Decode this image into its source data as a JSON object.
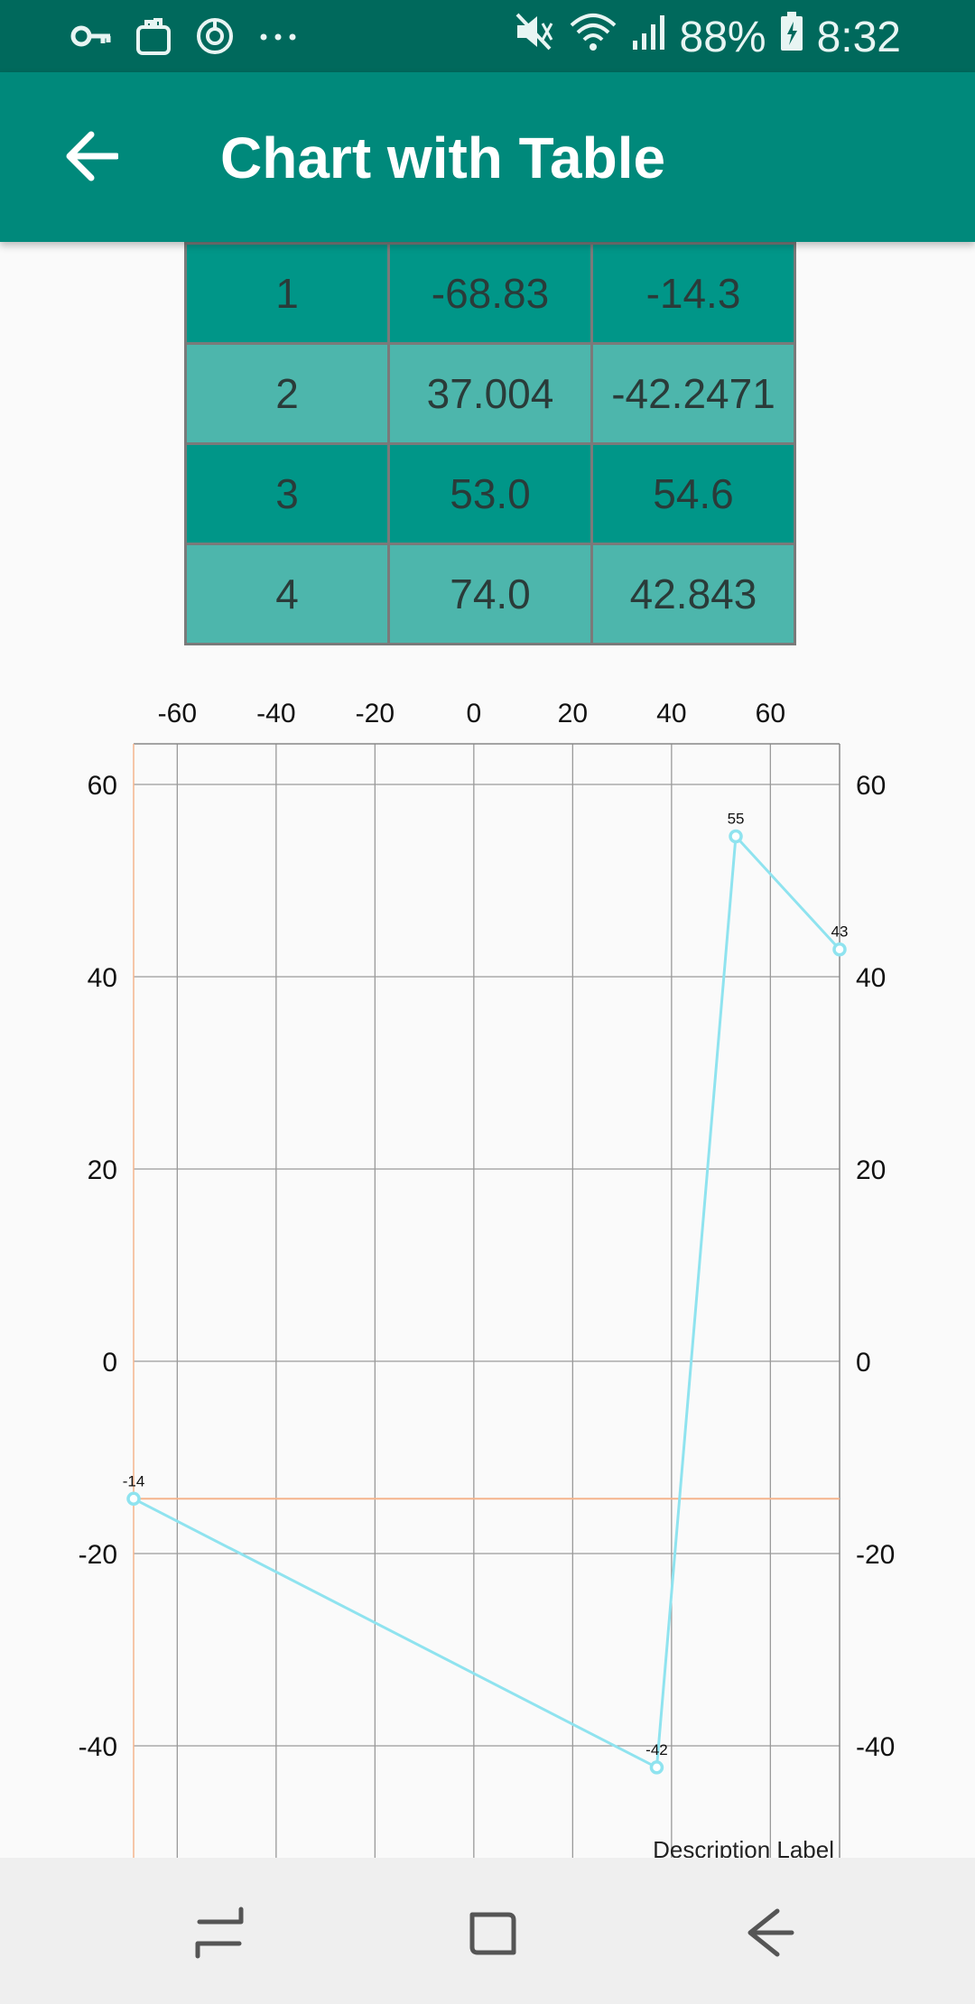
{
  "status_bar": {
    "battery": "88%",
    "time": "8:32",
    "icons_left": [
      "key-icon",
      "bag-icon",
      "sync-icon",
      "more-dots-icon"
    ],
    "icons_right": [
      "mute-icon",
      "wifi-icon",
      "signal-icon",
      "battery-icon"
    ]
  },
  "app_bar": {
    "title": "Chart with Table",
    "back_icon": "arrow-back-icon",
    "color": "#00897b"
  },
  "table": {
    "rows": [
      {
        "idx": "1",
        "x": "-68.83",
        "y": "-14.3"
      },
      {
        "idx": "2",
        "x": "37.004",
        "y": "-42.2471"
      },
      {
        "idx": "3",
        "x": "53.0",
        "y": "54.6"
      },
      {
        "idx": "4",
        "x": "74.0",
        "y": "42.843"
      }
    ],
    "colors": {
      "dark": "#009688",
      "light": "#4db6ac"
    }
  },
  "chart_data": {
    "type": "line",
    "points": [
      {
        "x": -68.83,
        "y": -14.3,
        "label": "-14"
      },
      {
        "x": 37.004,
        "y": -42.2471,
        "label": "-42"
      },
      {
        "x": 53.0,
        "y": 54.6,
        "label": "55"
      },
      {
        "x": 74.0,
        "y": 42.843,
        "label": "43"
      }
    ],
    "x_ticks": [
      "-60",
      "-40",
      "-20",
      "0",
      "20",
      "40",
      "60"
    ],
    "y_ticks": [
      "60",
      "40",
      "20",
      "0",
      "-20",
      "-40"
    ],
    "x_axis_position": "top",
    "y_axis_position": "left and right",
    "xlim": [
      -68.83,
      74.0
    ],
    "ylim_visible": [
      -50,
      64
    ],
    "grid": true,
    "limit_line_y": -14.3,
    "line_color": "#8fe3ef",
    "limit_line_color": "#f5b48c",
    "description": "Description Label"
  },
  "nav_bar": {
    "buttons": [
      "recent-apps-icon",
      "home-icon",
      "back-icon"
    ]
  }
}
